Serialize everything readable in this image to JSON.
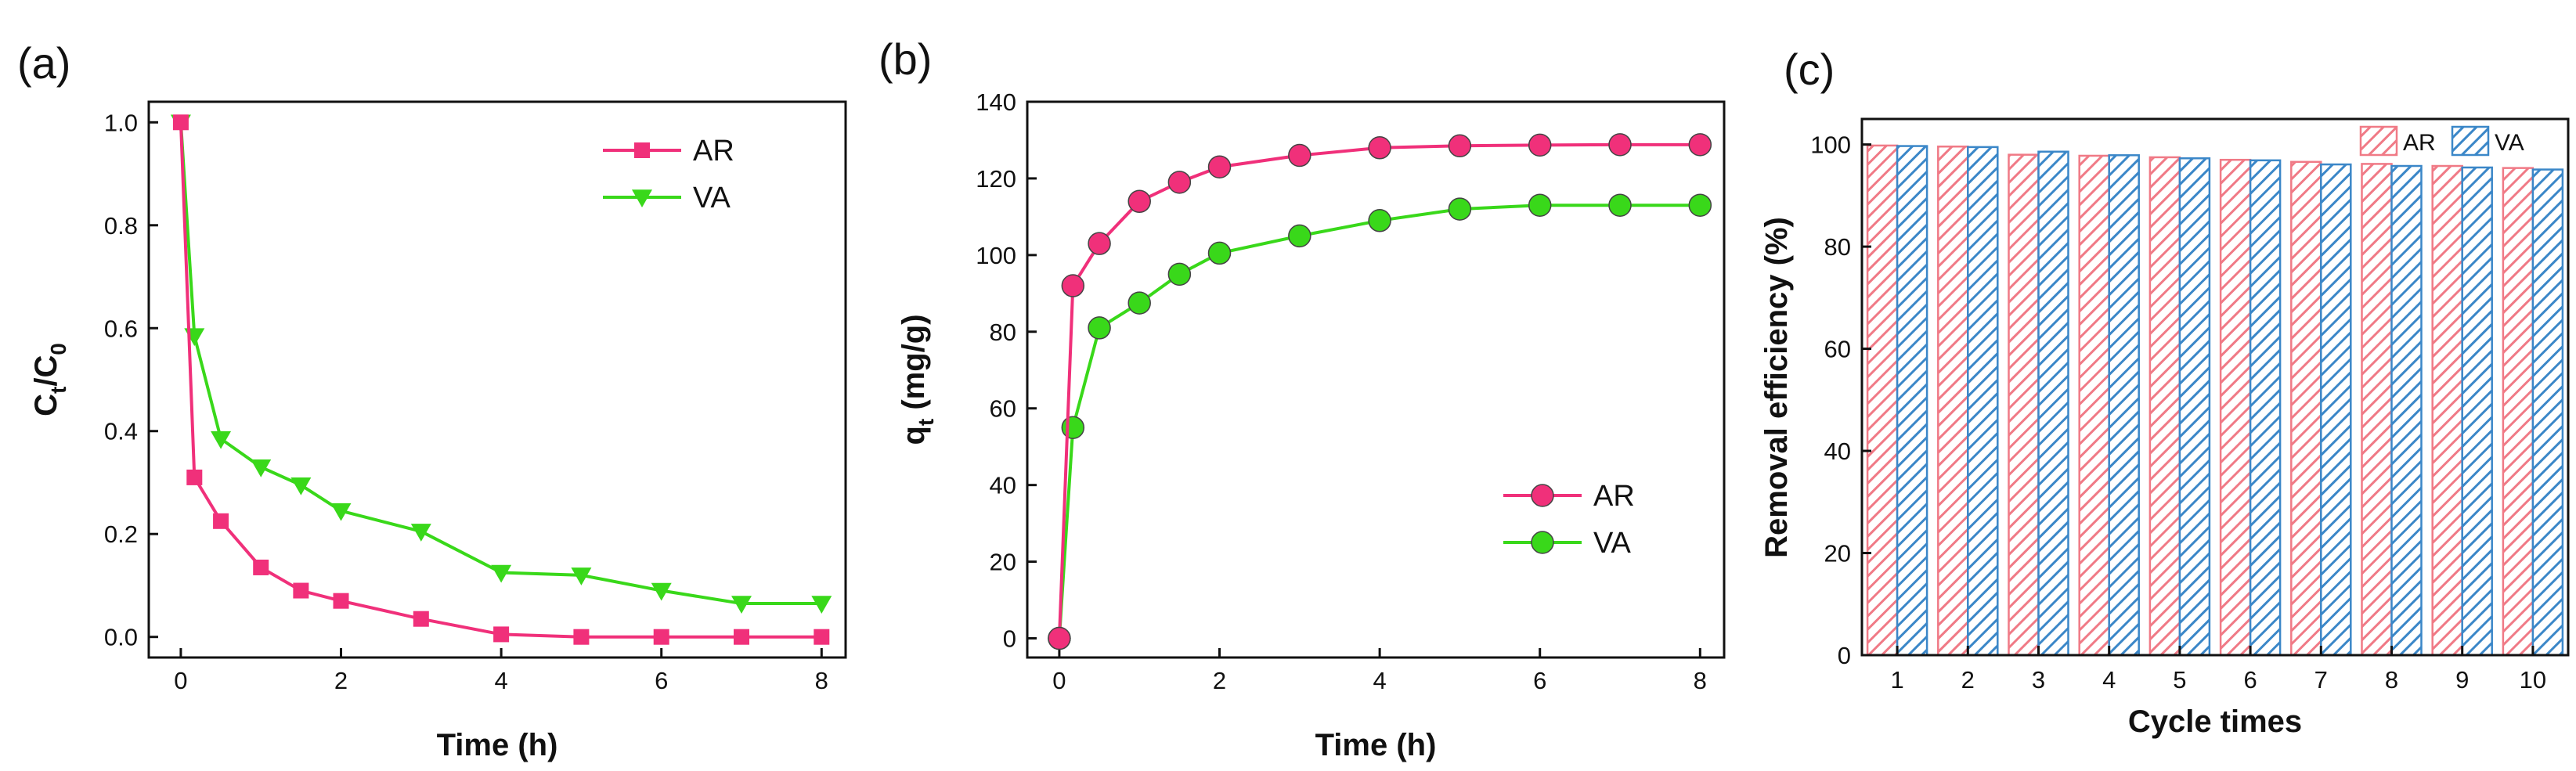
{
  "figure": {
    "panel_labels": [
      "(a)",
      "(b)",
      "(c)"
    ]
  },
  "colors": {
    "ar": "#f0307a",
    "va": "#39d81a",
    "ar_bar": "#f07a86",
    "va_bar": "#3b87c8",
    "axis": "#111111"
  },
  "chart_data": [
    {
      "type": "line",
      "panel": "(a)",
      "xlabel": "Time (h)",
      "ylabel": {
        "main": "C",
        "sub1": "t",
        "mid": "/C",
        "sub2": "0"
      },
      "xlim": [
        -0.4,
        8.3
      ],
      "ylim": [
        -0.04,
        1.04
      ],
      "xticks": [
        0,
        2,
        4,
        6,
        8
      ],
      "yticks": [
        0.0,
        0.2,
        0.4,
        0.6,
        0.8,
        1.0
      ],
      "ytick_labels": [
        "0.0",
        "0.2",
        "0.4",
        "0.6",
        "0.8",
        "1.0"
      ],
      "legend_position": "top-right",
      "series": [
        {
          "name": "AR",
          "marker": "square",
          "x": [
            0,
            0.17,
            0.5,
            1,
            1.5,
            2,
            3,
            4,
            5,
            6,
            7,
            8
          ],
          "y": [
            1.0,
            0.31,
            0.225,
            0.135,
            0.09,
            0.07,
            0.035,
            0.005,
            0.0,
            0.0,
            0.0,
            0.0
          ]
        },
        {
          "name": "VA",
          "marker": "triangle-down",
          "x": [
            0,
            0.17,
            0.5,
            1,
            1.5,
            2,
            3,
            4,
            5,
            6,
            7,
            8
          ],
          "y": [
            1.0,
            0.585,
            0.385,
            0.33,
            0.295,
            0.245,
            0.205,
            0.125,
            0.12,
            0.09,
            0.065,
            0.065
          ]
        }
      ]
    },
    {
      "type": "line",
      "panel": "(b)",
      "xlabel": "Time (h)",
      "ylabel": {
        "main": "q",
        "sub1": "t",
        "mid": " (mg/g)",
        "sub2": ""
      },
      "xlim": [
        -0.4,
        8.3
      ],
      "ylim": [
        -5,
        140
      ],
      "xticks": [
        0,
        2,
        4,
        6,
        8
      ],
      "yticks": [
        0,
        20,
        40,
        60,
        80,
        100,
        120,
        140
      ],
      "ytick_labels": [
        "0",
        "20",
        "40",
        "60",
        "80",
        "100",
        "120",
        "140"
      ],
      "legend_position": "bottom-right",
      "series": [
        {
          "name": "AR",
          "marker": "circle",
          "x": [
            0,
            0.17,
            0.5,
            1,
            1.5,
            2,
            3,
            4,
            5,
            6,
            7,
            8
          ],
          "y": [
            0,
            92,
            103,
            114,
            119,
            123,
            126,
            128,
            128.5,
            128.7,
            128.8,
            128.8
          ]
        },
        {
          "name": "VA",
          "marker": "circle",
          "x": [
            0,
            0.17,
            0.5,
            1,
            1.5,
            2,
            3,
            4,
            5,
            6,
            7,
            8
          ],
          "y": [
            0,
            55,
            81,
            87.5,
            95,
            100.5,
            105,
            109,
            112,
            113,
            113,
            113
          ]
        }
      ]
    },
    {
      "type": "bar",
      "panel": "(c)",
      "xlabel": "Cycle times",
      "ylabel": "Removal efficiency (%)",
      "ylim": [
        0,
        105
      ],
      "yticks": [
        0,
        20,
        40,
        60,
        80,
        100
      ],
      "categories": [
        "1",
        "2",
        "3",
        "4",
        "5",
        "6",
        "7",
        "8",
        "9",
        "10"
      ],
      "legend_position": "top-right",
      "series": [
        {
          "name": "AR",
          "hatch": "diagonal",
          "values": [
            99.8,
            99.6,
            98.0,
            97.8,
            97.5,
            97.0,
            96.6,
            96.2,
            95.8,
            95.4
          ]
        },
        {
          "name": "VA",
          "hatch": "diagonal",
          "values": [
            99.7,
            99.5,
            98.6,
            97.9,
            97.3,
            96.9,
            96.1,
            95.8,
            95.5,
            95.1
          ]
        }
      ]
    }
  ]
}
